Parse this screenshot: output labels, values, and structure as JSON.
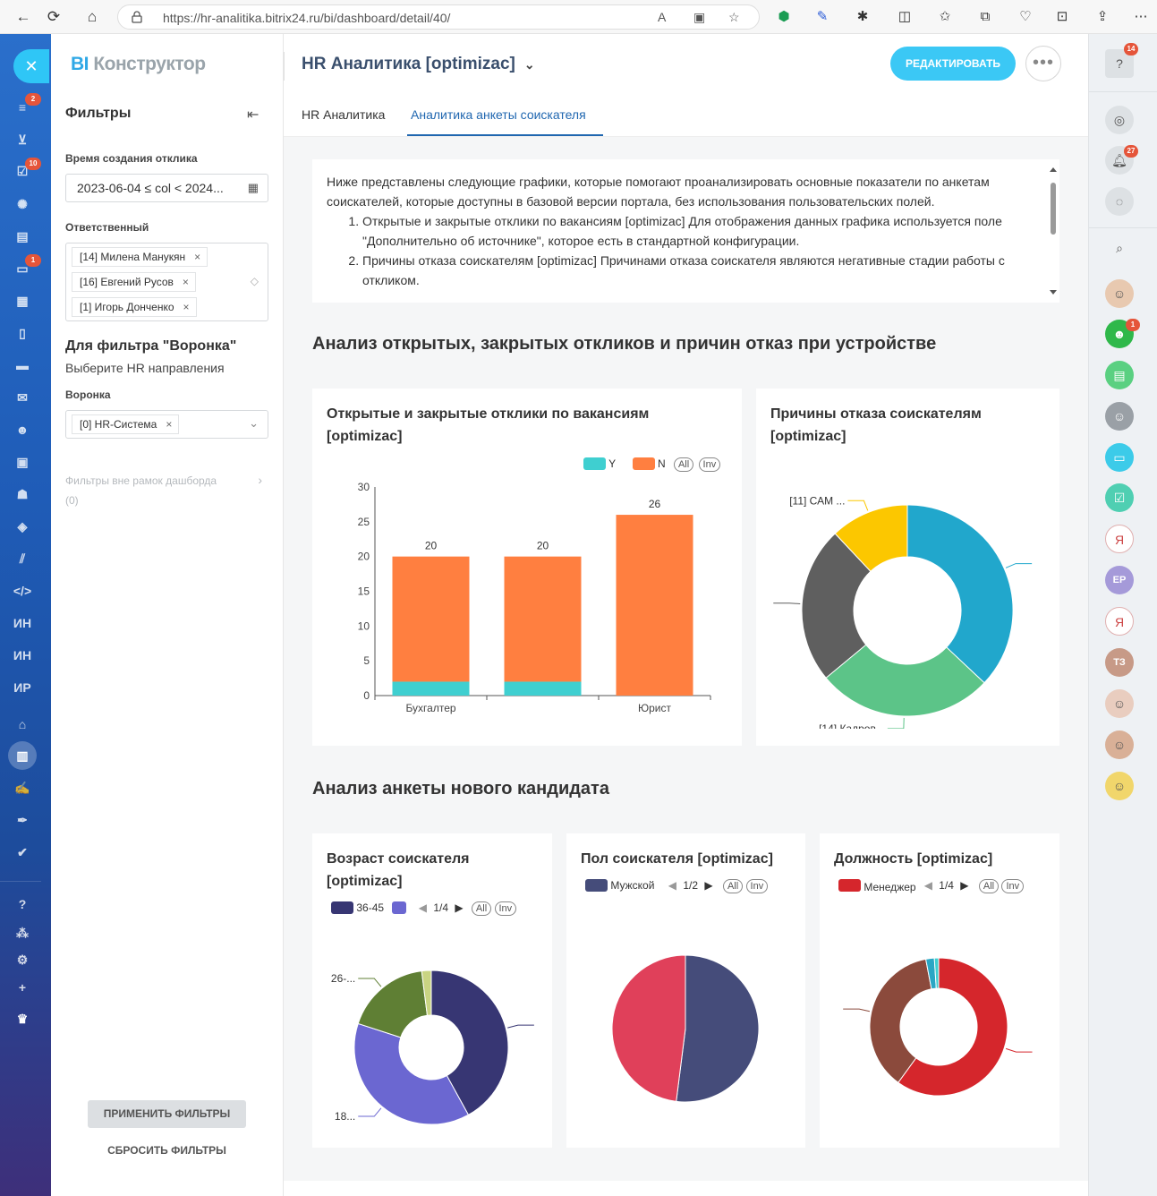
{
  "browser": {
    "url": "https://hr-analitika.bitrix24.ru/bi/dashboard/detail/40/"
  },
  "leftnav": {
    "badges": [
      "2",
      "10",
      "1"
    ],
    "text_items": [
      "ИН",
      "ИН",
      "ИР"
    ]
  },
  "filters": {
    "logo_prefix": "BI",
    "logo_rest": "Конструктор",
    "heading": "Фильтры",
    "time_label": "Время создания отклика",
    "time_value": "2023-06-04 ≤ col < 2024...",
    "responsible_label": "Ответственный",
    "responsible_tags": [
      "[14] Милена Манукян",
      "[16] Евгений Русов",
      "[1] Игорь Донченко"
    ],
    "funnel_heading": "Для фильтра \"Воронка\"",
    "funnel_hint": "Выберите HR направления",
    "funnel_label": "Воронка",
    "funnel_tag": "[0] HR-Система",
    "outside_filters": "Фильтры вне рамок дашборда",
    "outside_count": "(0)",
    "apply": "ПРИМЕНИТЬ ФИЛЬТРЫ",
    "reset": "СБРОСИТЬ ФИЛЬТРЫ"
  },
  "header": {
    "title": "HR Аналитика [optimizac]",
    "edit": "РЕДАКТИРОВАТЬ",
    "more": "•••",
    "tabs": [
      "HR Аналитика",
      "Аналитика анкеты соискателя"
    ]
  },
  "intro": {
    "paragraph": "Ниже представлены следующие графики, которые помогают проанализировать основные показатели по анкетам соискателей, которые доступны в базовой версии портала, без использования пользовательских полей.",
    "items": [
      "Открытые и закрытые отклики по вакансиям [optimizac] Для отображения данных графика используется поле \"Дополнительно об источнике\", которое есть в стандартной конфигурации.",
      "Причины отказа соискателям [optimizac] Причинами отказа соискателя являются негативные стадии работы с откликом."
    ]
  },
  "section1_title": "Анализ открытых, закрытых откликов и причин отказ при устройстве",
  "section2_title": "Анализ анкеты нового кандидата",
  "charts": {
    "bar": {
      "title": "Открытые и закрытые отклики по вакансиям [optimizac]",
      "legend_all": "All",
      "legend_inv": "Inv"
    },
    "reasons": {
      "title": "Причины отказа соискателям [optimizac]",
      "labels": [
        "[11] САМ ...",
        "[14] Кадров..."
      ]
    },
    "age": {
      "title": "Возраст соискателя [optimizac]",
      "legend_first": "36-45",
      "page": "1/4",
      "labels": [
        "26-...",
        "18..."
      ]
    },
    "gender": {
      "title": "Пол соискателя [optimizac]",
      "legend_first": "Мужской",
      "page": "1/2"
    },
    "position": {
      "title": "Должность [optimizac]",
      "legend_first": "Менеджер",
      "page": "1/4"
    }
  },
  "chart_data": [
    {
      "type": "bar",
      "categories": [
        "Бухгалтер",
        "",
        "Юрист"
      ],
      "series": [
        {
          "name": "Y",
          "values": [
            2,
            2,
            0
          ],
          "color": "#3fcfd0"
        },
        {
          "name": "N",
          "values": [
            18,
            18,
            26
          ],
          "color": "#ff7f40"
        }
      ],
      "totals": [
        20,
        20,
        26
      ],
      "ylim": [
        0,
        30
      ],
      "yticks": [
        0,
        5,
        10,
        15,
        20,
        25,
        30
      ],
      "legend": "top-right"
    },
    {
      "type": "pie",
      "donut": true,
      "slices": [
        {
          "label": "",
          "value": 37,
          "color": "#21a7cc"
        },
        {
          "label": "[14] Кадров...",
          "value": 27,
          "color": "#5cc488"
        },
        {
          "label": "",
          "value": 24,
          "color": "#5f5f5f"
        },
        {
          "label": "[11] САМ ...",
          "value": 12,
          "color": "#fcc700"
        }
      ]
    },
    {
      "type": "pie",
      "donut": true,
      "slices": [
        {
          "label": "36-45",
          "value": 42,
          "color": "#373673"
        },
        {
          "label": "18...",
          "value": 38,
          "color": "#6b67d1"
        },
        {
          "label": "26-...",
          "value": 18,
          "color": "#5f7f34"
        },
        {
          "label": "",
          "value": 2,
          "color": "#c9d482"
        }
      ]
    },
    {
      "type": "pie",
      "donut": false,
      "slices": [
        {
          "label": "Мужской",
          "value": 52,
          "color": "#454c7a"
        },
        {
          "label": "",
          "value": 48,
          "color": "#e0405a"
        }
      ]
    },
    {
      "type": "pie",
      "donut": true,
      "slices": [
        {
          "label": "Менеджер",
          "value": 60,
          "color": "#d5262c"
        },
        {
          "label": "",
          "value": 37,
          "color": "#8b4a3c"
        },
        {
          "label": "",
          "value": 2,
          "color": "#2aa6c4"
        },
        {
          "label": "",
          "value": 1,
          "color": "#3fcfd0"
        }
      ]
    }
  ],
  "rightbar": {
    "badges": [
      "14",
      "27",
      "1"
    ],
    "initials": [
      "ЕР",
      "ТЗ"
    ]
  },
  "colors": {
    "accent": "#3bc8f5",
    "nav_blue": "#2067b0"
  }
}
